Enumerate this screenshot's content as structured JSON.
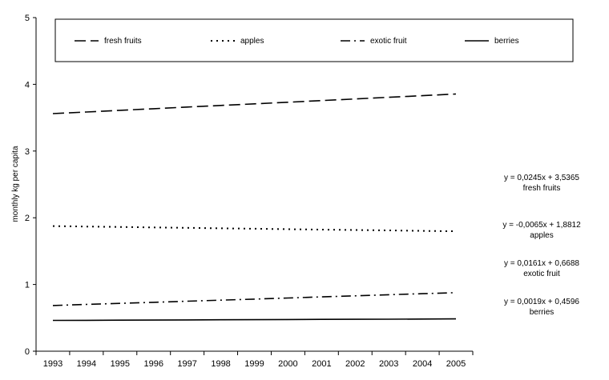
{
  "chart_data": {
    "type": "line",
    "title": "",
    "xlabel": "",
    "ylabel": "monthly kg per capita",
    "x": [
      "1993",
      "1994",
      "1995",
      "1996",
      "1997",
      "1998",
      "1999",
      "2000",
      "2001",
      "2002",
      "2003",
      "2004",
      "2005"
    ],
    "ylim": [
      0,
      5
    ],
    "yticks": [
      "0",
      "1",
      "2",
      "3",
      "4",
      "5"
    ],
    "grid": false,
    "legend_position": "top",
    "series": [
      {
        "name": "fresh fruits",
        "dash": "dashed",
        "color": "#000000",
        "values": [
          3.561,
          3.585,
          3.61,
          3.634,
          3.659,
          3.683,
          3.708,
          3.732,
          3.757,
          3.781,
          3.806,
          3.83,
          3.855
        ],
        "equation": "y = 0,0245x + 3,5365",
        "equation_label": "fresh fruits"
      },
      {
        "name": "apples",
        "dash": "dotted",
        "color": "#000000",
        "values": [
          1.875,
          1.868,
          1.862,
          1.855,
          1.849,
          1.842,
          1.836,
          1.829,
          1.823,
          1.816,
          1.81,
          1.803,
          1.797
        ],
        "equation": "y = -0,0065x + 1,8812",
        "equation_label": "apples"
      },
      {
        "name": "exotic fruit",
        "dash": "dashdot",
        "color": "#000000",
        "values": [
          0.685,
          0.701,
          0.717,
          0.733,
          0.749,
          0.765,
          0.781,
          0.797,
          0.814,
          0.83,
          0.846,
          0.862,
          0.878
        ],
        "equation": "y = 0,0161x + 0,6688",
        "equation_label": "exotic fruit"
      },
      {
        "name": "berries",
        "dash": "solid",
        "color": "#000000",
        "values": [
          0.462,
          0.463,
          0.465,
          0.467,
          0.469,
          0.471,
          0.473,
          0.475,
          0.477,
          0.479,
          0.48,
          0.482,
          0.484
        ],
        "equation": "y = 0,0019x + 0,4596",
        "equation_label": "berries"
      }
    ]
  }
}
